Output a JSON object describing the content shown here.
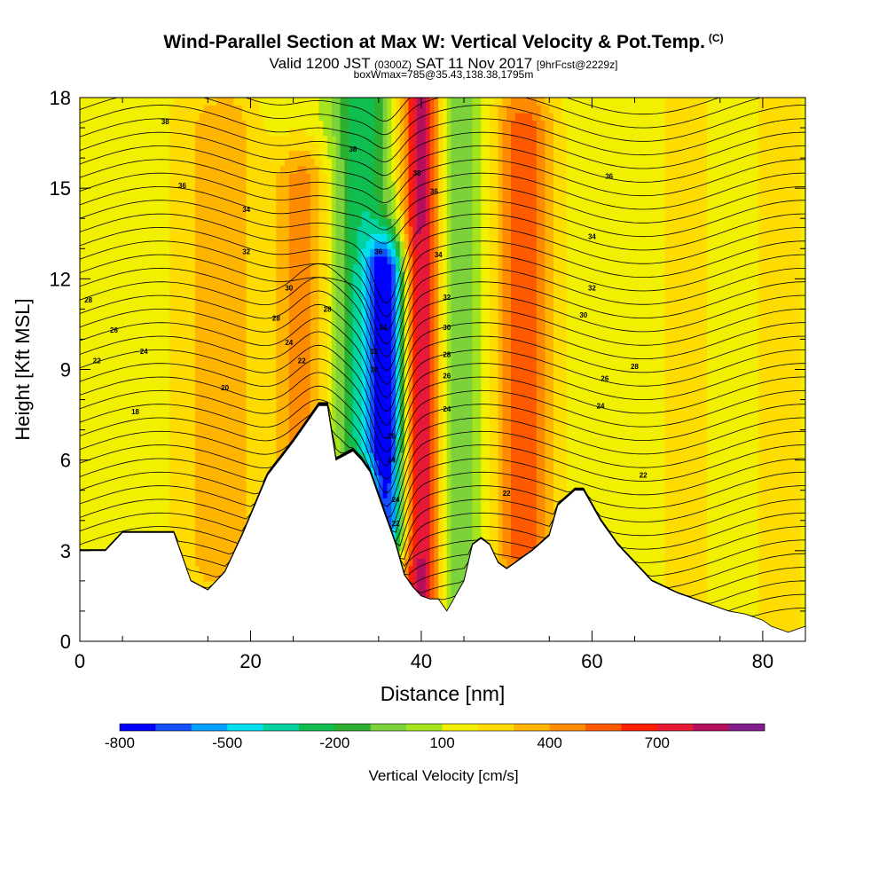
{
  "header": {
    "title": "Wind-Parallel Section at Max W: Vertical Velocity & Pot.Temp.",
    "copyright": "(C)",
    "valid_prefix": "Valid 1200 JST",
    "valid_utc": "(0300Z)",
    "valid_date": "SAT 11 Nov 2017",
    "forecast": "[9hrFcst@2229z]",
    "box_info": "boxWmax=785@35.43,138.38,1795m"
  },
  "chart_data": {
    "type": "heatmap",
    "xlabel": "Distance [nm]",
    "ylabel": "Height [Kft MSL]",
    "xlim": [
      0,
      85
    ],
    "ylim": [
      0,
      18
    ],
    "x_ticks": [
      "0",
      "20",
      "40",
      "60",
      "80"
    ],
    "y_ticks": [
      "0",
      "3",
      "6",
      "9",
      "12",
      "15",
      "18"
    ],
    "colorbar": {
      "label": "Vertical Velocity [cm/s]",
      "tick_labels": [
        "-800",
        "-500",
        "-200",
        "100",
        "400",
        "700"
      ],
      "colors": [
        "#0000ff",
        "#1450ff",
        "#00a0ff",
        "#00e0f0",
        "#00d2a0",
        "#10be50",
        "#2faf2f",
        "#7dd23c",
        "#a5e41c",
        "#f0f000",
        "#ffdc00",
        "#ffb400",
        "#ff8c00",
        "#ff5a00",
        "#ff1e00",
        "#e61937",
        "#b40f5a",
        "#821e8c"
      ]
    },
    "terrain_kft": [
      [
        0,
        3.0
      ],
      [
        3,
        3.0
      ],
      [
        5,
        3.6
      ],
      [
        8,
        3.6
      ],
      [
        11,
        3.6
      ],
      [
        13,
        2.0
      ],
      [
        15,
        1.7
      ],
      [
        17,
        2.3
      ],
      [
        19,
        3.5
      ],
      [
        22,
        5.5
      ],
      [
        25,
        6.6
      ],
      [
        27,
        7.4
      ],
      [
        28,
        7.8
      ],
      [
        29,
        7.8
      ],
      [
        30,
        6.0
      ],
      [
        32,
        6.3
      ],
      [
        33,
        6.0
      ],
      [
        34,
        5.6
      ],
      [
        35,
        4.8
      ],
      [
        36,
        4.0
      ],
      [
        37,
        3.2
      ],
      [
        38,
        2.2
      ],
      [
        39,
        1.8
      ],
      [
        40,
        1.5
      ],
      [
        41,
        1.4
      ],
      [
        42,
        1.4
      ],
      [
        43,
        1.0
      ],
      [
        44,
        1.5
      ],
      [
        45,
        2.0
      ],
      [
        46,
        3.2
      ],
      [
        47,
        3.4
      ],
      [
        48,
        3.2
      ],
      [
        49,
        2.6
      ],
      [
        50,
        2.4
      ],
      [
        51,
        2.6
      ],
      [
        53,
        3.0
      ],
      [
        55,
        3.5
      ],
      [
        56,
        4.5
      ],
      [
        58,
        5.0
      ],
      [
        59,
        5.0
      ],
      [
        60,
        4.5
      ],
      [
        61,
        4.0
      ],
      [
        63,
        3.2
      ],
      [
        65,
        2.6
      ],
      [
        67,
        2.0
      ],
      [
        70,
        1.6
      ],
      [
        73,
        1.3
      ],
      [
        76,
        1.0
      ],
      [
        78,
        0.9
      ],
      [
        80,
        0.7
      ],
      [
        81,
        0.5
      ],
      [
        83,
        0.3
      ],
      [
        85,
        0.5
      ]
    ],
    "vertical_velocity_features": [
      {
        "x": 13,
        "z_range": [
          2.0,
          17
        ],
        "velocity_cm_s": 100
      },
      {
        "x": 17.5,
        "z_range": [
          3.0,
          17
        ],
        "velocity_cm_s": 200
      },
      {
        "x": 26,
        "z_range": [
          6.5,
          15
        ],
        "velocity_cm_s": 300
      },
      {
        "x": 33,
        "z_range": [
          7,
          18
        ],
        "velocity_cm_s": -400
      },
      {
        "x": 36,
        "z_range": [
          4,
          12
        ],
        "velocity_cm_s": -800
      },
      {
        "x": 40,
        "z_range": [
          1.5,
          18
        ],
        "velocity_cm_s": 700
      },
      {
        "x": 44,
        "z_range": [
          2,
          18
        ],
        "velocity_cm_s": -200
      },
      {
        "x": 52,
        "z_range": [
          3,
          17
        ],
        "velocity_cm_s": 400
      },
      {
        "x": 71,
        "z_range": [
          0.5,
          18
        ],
        "velocity_cm_s": 100
      },
      {
        "x": 82,
        "z_range": [
          0.5,
          18
        ],
        "velocity_cm_s": 100
      }
    ],
    "contour_label_positions": [
      {
        "x": 10,
        "z": 17.2,
        "label": "38"
      },
      {
        "x": 12,
        "z": 15.1,
        "label": "36"
      },
      {
        "x": 19.5,
        "z": 14.3,
        "label": "34"
      },
      {
        "x": 19.5,
        "z": 12.9,
        "label": "32"
      },
      {
        "x": 24.5,
        "z": 11.7,
        "label": "30"
      },
      {
        "x": 23,
        "z": 10.7,
        "label": "28"
      },
      {
        "x": 24.5,
        "z": 9.9,
        "label": "24"
      },
      {
        "x": 26,
        "z": 9.3,
        "label": "22"
      },
      {
        "x": 17,
        "z": 8.4,
        "label": "20"
      },
      {
        "x": 6.5,
        "z": 7.6,
        "label": "18"
      },
      {
        "x": 1,
        "z": 11.3,
        "label": "28"
      },
      {
        "x": 4,
        "z": 10.3,
        "label": "26"
      },
      {
        "x": 7.5,
        "z": 9.6,
        "label": "24"
      },
      {
        "x": 2,
        "z": 9.3,
        "label": "22"
      },
      {
        "x": 29,
        "z": 11.0,
        "label": "28"
      },
      {
        "x": 32,
        "z": 16.3,
        "label": "38"
      },
      {
        "x": 35,
        "z": 12.9,
        "label": "36"
      },
      {
        "x": 35.5,
        "z": 10.4,
        "label": "34"
      },
      {
        "x": 34.5,
        "z": 9.6,
        "label": "32"
      },
      {
        "x": 34.5,
        "z": 9.0,
        "label": "30"
      },
      {
        "x": 36.5,
        "z": 6.8,
        "label": "26"
      },
      {
        "x": 36.5,
        "z": 6.0,
        "label": "24"
      },
      {
        "x": 37,
        "z": 4.7,
        "label": "24"
      },
      {
        "x": 37,
        "z": 3.9,
        "label": "22"
      },
      {
        "x": 39.5,
        "z": 15.5,
        "label": "38"
      },
      {
        "x": 41.5,
        "z": 14.9,
        "label": "36"
      },
      {
        "x": 42,
        "z": 12.8,
        "label": "34"
      },
      {
        "x": 43,
        "z": 11.4,
        "label": "32"
      },
      {
        "x": 43,
        "z": 10.4,
        "label": "30"
      },
      {
        "x": 43,
        "z": 9.5,
        "label": "28"
      },
      {
        "x": 43,
        "z": 8.8,
        "label": "26"
      },
      {
        "x": 43,
        "z": 7.7,
        "label": "24"
      },
      {
        "x": 50,
        "z": 4.9,
        "label": "22"
      },
      {
        "x": 62,
        "z": 15.4,
        "label": "36"
      },
      {
        "x": 60,
        "z": 13.4,
        "label": "34"
      },
      {
        "x": 60,
        "z": 11.7,
        "label": "32"
      },
      {
        "x": 59,
        "z": 10.8,
        "label": "30"
      },
      {
        "x": 65,
        "z": 9.1,
        "label": "28"
      },
      {
        "x": 61.5,
        "z": 8.7,
        "label": "26"
      },
      {
        "x": 61,
        "z": 7.8,
        "label": "24"
      },
      {
        "x": 66,
        "z": 5.5,
        "label": "22"
      }
    ]
  }
}
